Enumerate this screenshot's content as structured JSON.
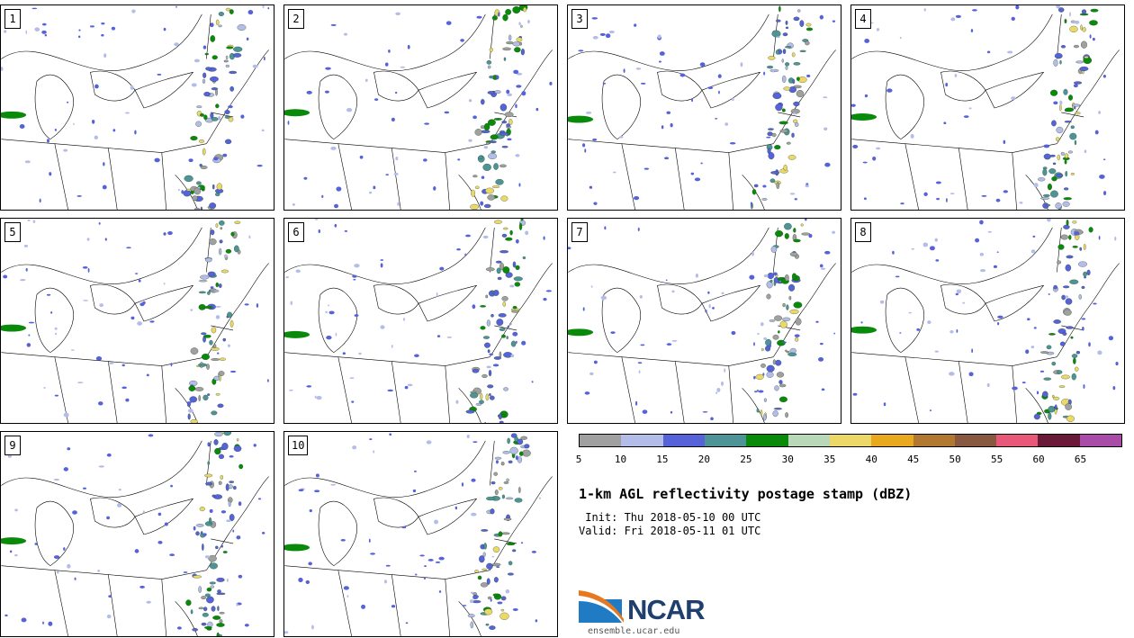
{
  "panels": [
    {
      "label": "1"
    },
    {
      "label": "2"
    },
    {
      "label": "3"
    },
    {
      "label": "4"
    },
    {
      "label": "5"
    },
    {
      "label": "6"
    },
    {
      "label": "7"
    },
    {
      "label": "8"
    },
    {
      "label": "9"
    },
    {
      "label": "10"
    }
  ],
  "colorbar": {
    "colors": [
      "#a0a0a0",
      "#b4bce8",
      "#5662d8",
      "#4e9496",
      "#0a8a0a",
      "#b8d8b8",
      "#ecd868",
      "#e8a820",
      "#b07830",
      "#885840",
      "#e85878",
      "#6a1a38",
      "#a84ca8"
    ],
    "ticks": [
      "5",
      "10",
      "15",
      "20",
      "25",
      "30",
      "35",
      "40",
      "45",
      "50",
      "55",
      "60",
      "65"
    ]
  },
  "title": "1-km AGL reflectivity postage stamp (dBZ)",
  "init": " Init: Thu 2018-05-10 00 UTC",
  "valid": "Valid: Fri 2018-05-11 01 UTC",
  "logo": {
    "text": "NCAR",
    "site": "ensemble.ucar.edu"
  }
}
